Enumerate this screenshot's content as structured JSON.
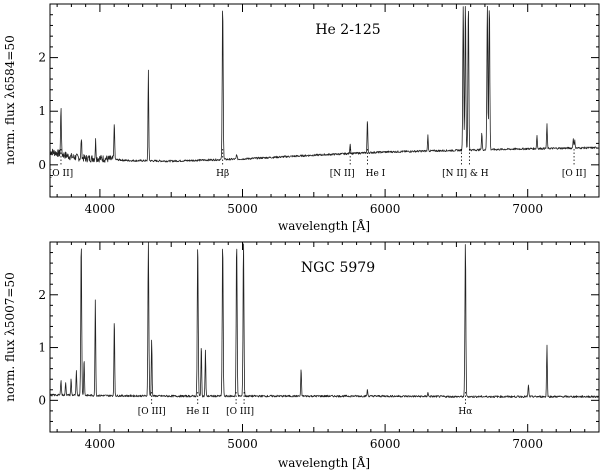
{
  "chart_data": [
    {
      "type": "line",
      "title": "He 2-125",
      "xlabel": "wavelength  [Å]",
      "ylabel": "norm. flux λ6584=50",
      "xlim": [
        3650,
        7500
      ],
      "ylim": [
        -0.6,
        3.0
      ],
      "xticks": [
        4000,
        5000,
        6000,
        7000
      ],
      "xtick_labels": [
        "4000",
        "5000",
        "6000",
        "7000"
      ],
      "yticks": [
        0,
        1,
        2
      ],
      "ytick_labels": [
        "0",
        "1",
        "2"
      ],
      "grid": false,
      "continuum": {
        "x": [
          3650,
          3700,
          3800,
          3900,
          4000,
          4200,
          4500,
          5000,
          5500,
          6000,
          6500,
          7000,
          7500
        ],
        "y": [
          0.25,
          0.22,
          0.15,
          0.12,
          0.12,
          0.08,
          0.07,
          0.11,
          0.18,
          0.24,
          0.27,
          0.3,
          0.32
        ]
      },
      "emission_lines": [
        {
          "x": 3727,
          "peak": 1.1
        },
        {
          "x": 3870,
          "peak": 0.5
        },
        {
          "x": 3970,
          "peak": 0.45
        },
        {
          "x": 4101,
          "peak": 0.8
        },
        {
          "x": 4340,
          "peak": 1.75
        },
        {
          "x": 4861,
          "peak": 3.0
        },
        {
          "x": 4959,
          "peak": 0.2
        },
        {
          "x": 5755,
          "peak": 0.4
        },
        {
          "x": 5876,
          "peak": 0.85
        },
        {
          "x": 6300,
          "peak": 0.55
        },
        {
          "x": 6548,
          "peak": 3.0
        },
        {
          "x": 6563,
          "peak": 3.0
        },
        {
          "x": 6584,
          "peak": 3.0
        },
        {
          "x": 6678,
          "peak": 0.6
        },
        {
          "x": 6717,
          "peak": 3.0
        },
        {
          "x": 6731,
          "peak": 3.0
        },
        {
          "x": 7065,
          "peak": 0.55
        },
        {
          "x": 7135,
          "peak": 0.75
        },
        {
          "x": 7320,
          "peak": 0.5
        },
        {
          "x": 7330,
          "peak": 0.45
        }
      ],
      "line_ids": [
        {
          "x": 3727,
          "label": "[O II]"
        },
        {
          "x": 4861,
          "label": "Hβ"
        },
        {
          "x": 5755,
          "label": "[N II]"
        },
        {
          "x": 5876,
          "label": "He I"
        },
        {
          "x": 6563,
          "label": "[N II] & H"
        },
        {
          "x": 7325,
          "label": "[O II]"
        }
      ]
    },
    {
      "type": "line",
      "title": "NGC 5979",
      "xlabel": "wavelength  [Å]",
      "ylabel": "norm. flux λ5007=50",
      "xlim": [
        3650,
        7500
      ],
      "ylim": [
        -0.6,
        3.0
      ],
      "xticks": [
        4000,
        5000,
        6000,
        7000
      ],
      "xtick_labels": [
        "4000",
        "5000",
        "6000",
        "7000"
      ],
      "yticks": [
        0,
        1,
        2
      ],
      "ytick_labels": [
        "0",
        "1",
        "2"
      ],
      "grid": false,
      "continuum": {
        "x": [
          3650,
          3800,
          4000,
          4500,
          5000,
          5500,
          6000,
          6500,
          7000,
          7500
        ],
        "y": [
          0.1,
          0.1,
          0.09,
          0.08,
          0.08,
          0.08,
          0.08,
          0.07,
          0.07,
          0.07
        ]
      },
      "emission_lines": [
        {
          "x": 3727,
          "peak": 0.4
        },
        {
          "x": 3760,
          "peak": 0.35
        },
        {
          "x": 3798,
          "peak": 0.4
        },
        {
          "x": 3835,
          "peak": 0.55
        },
        {
          "x": 3869,
          "peak": 3.0
        },
        {
          "x": 3889,
          "peak": 0.8
        },
        {
          "x": 3968,
          "peak": 1.95
        },
        {
          "x": 4101,
          "peak": 1.55
        },
        {
          "x": 4340,
          "peak": 3.0
        },
        {
          "x": 4363,
          "peak": 1.15
        },
        {
          "x": 4686,
          "peak": 3.0
        },
        {
          "x": 4711,
          "peak": 1.05
        },
        {
          "x": 4740,
          "peak": 0.95
        },
        {
          "x": 4861,
          "peak": 3.0
        },
        {
          "x": 4959,
          "peak": 3.0
        },
        {
          "x": 5007,
          "peak": 3.0
        },
        {
          "x": 5411,
          "peak": 0.6
        },
        {
          "x": 5876,
          "peak": 0.2
        },
        {
          "x": 6300,
          "peak": 0.15
        },
        {
          "x": 6563,
          "peak": 3.0
        },
        {
          "x": 7005,
          "peak": 0.3
        },
        {
          "x": 7135,
          "peak": 1.05
        }
      ],
      "line_ids": [
        {
          "x": 4363,
          "label": "[O III]"
        },
        {
          "x": 4686,
          "label": "He II"
        },
        {
          "x": 4983,
          "label": "[O III]"
        },
        {
          "x": 6563,
          "label": "Hα"
        }
      ]
    }
  ]
}
